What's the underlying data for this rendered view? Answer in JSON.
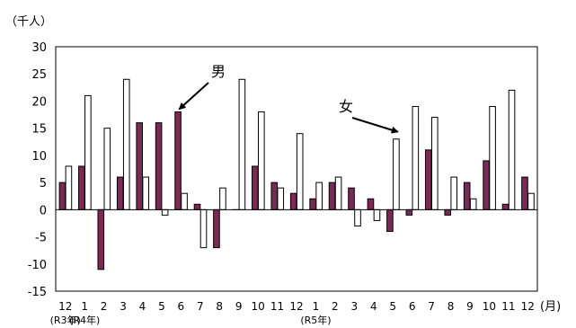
{
  "chart_data": {
    "type": "bar",
    "y_unit_label": "（千人）",
    "x_unit_label": "(月)",
    "ylim": [
      -15,
      30
    ],
    "y_ticks": [
      30,
      25,
      20,
      15,
      10,
      5,
      0,
      -5,
      -10,
      -15
    ],
    "grid": false,
    "categories": [
      "12",
      "1",
      "2",
      "3",
      "4",
      "5",
      "6",
      "7",
      "8",
      "9",
      "10",
      "11",
      "12",
      "1",
      "2",
      "3",
      "4",
      "5",
      "6",
      "7",
      "8",
      "9",
      "10",
      "11",
      "12"
    ],
    "year_labels": [
      {
        "index": 0,
        "text": "(R3年)"
      },
      {
        "index": 1,
        "text": "(R4年)"
      },
      {
        "index": 13,
        "text": "(R5年)"
      }
    ],
    "series": [
      {
        "name": "男",
        "color": "#7b2a55",
        "values": [
          5,
          8,
          -11,
          6,
          16,
          16,
          18,
          1,
          -7,
          0,
          8,
          5,
          3,
          2,
          5,
          4,
          2,
          -4,
          -1,
          11,
          -1,
          5,
          9,
          1,
          6
        ]
      },
      {
        "name": "女",
        "color": "#ffffff",
        "values": [
          8,
          21,
          15,
          24,
          6,
          -1,
          3,
          -7,
          4,
          24,
          18,
          4,
          14,
          5,
          6,
          -3,
          -2,
          13,
          19,
          17,
          6,
          2,
          19,
          22,
          3
        ]
      }
    ],
    "annotations": [
      {
        "series": "男",
        "text": "男"
      },
      {
        "series": "女",
        "text": "女"
      }
    ]
  }
}
